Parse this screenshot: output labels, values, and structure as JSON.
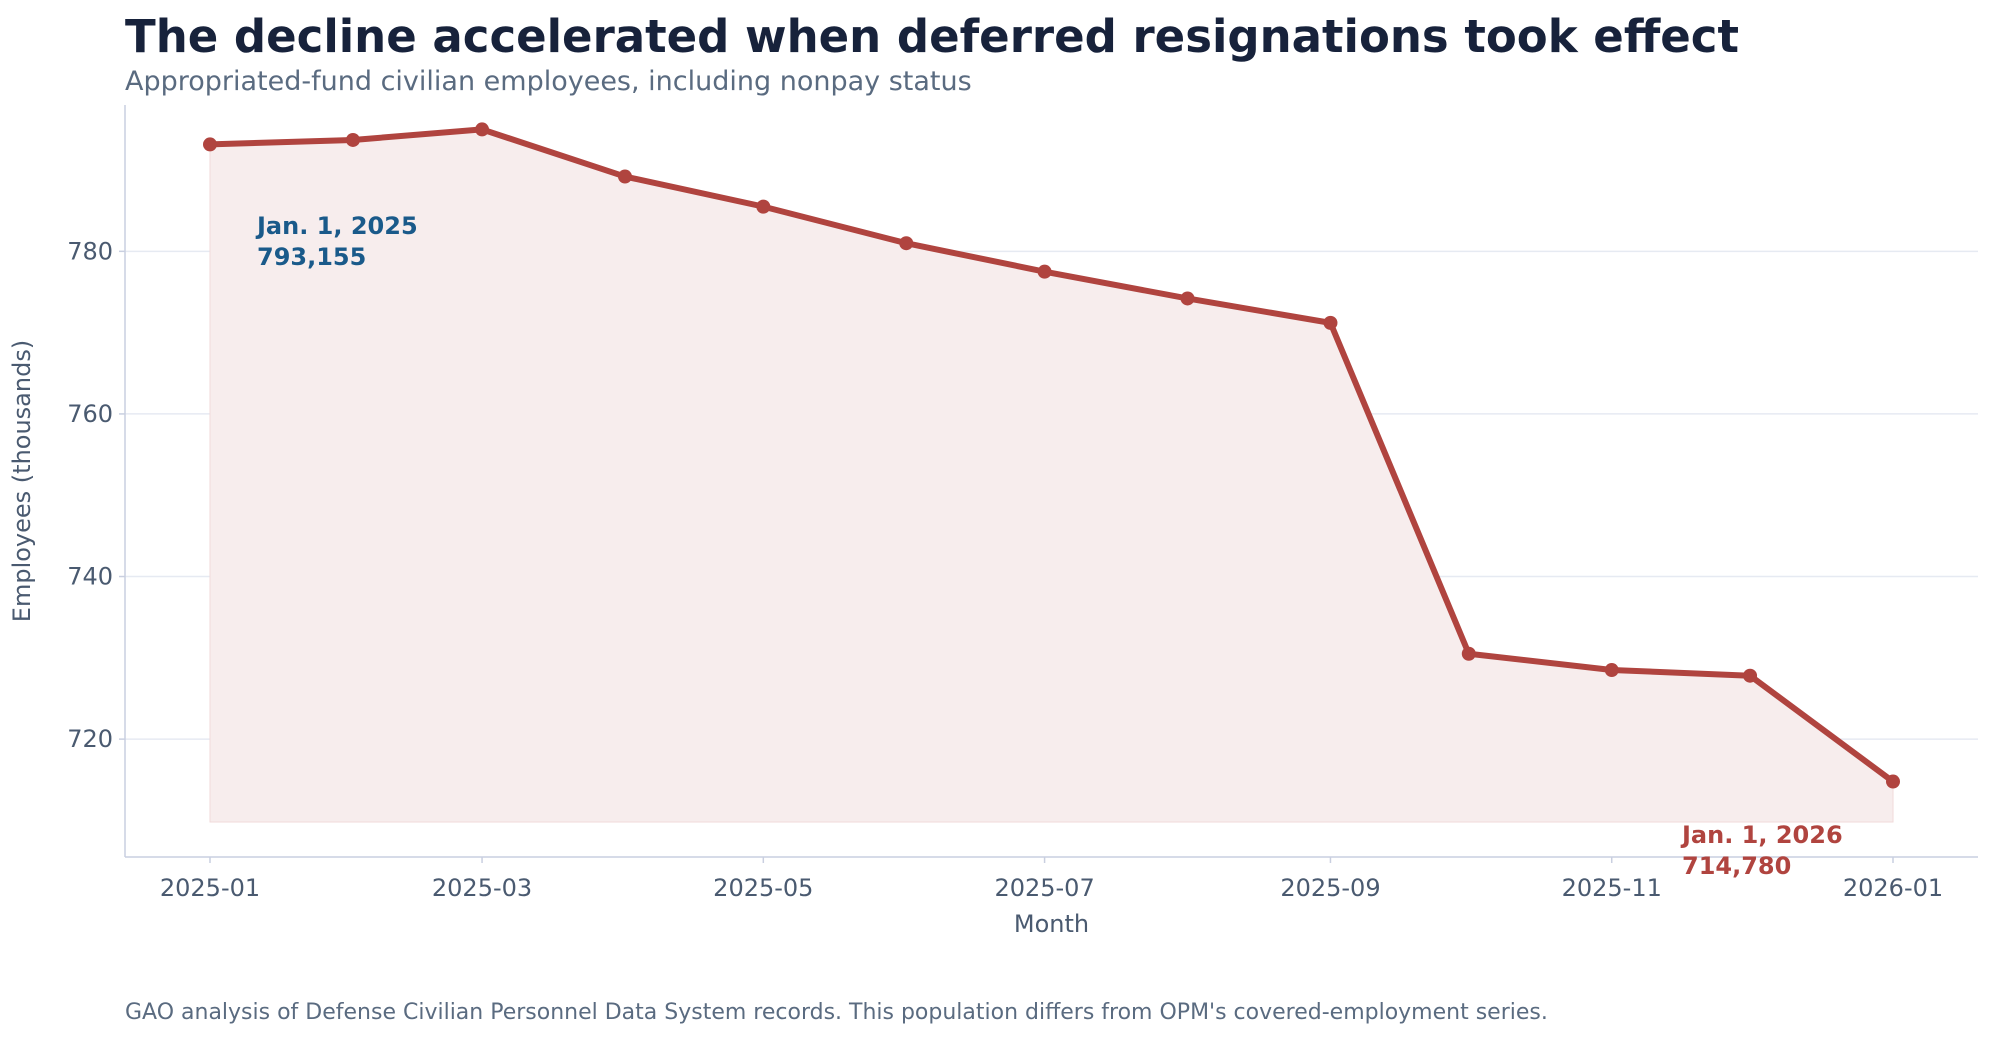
{
  "header": {
    "title": "The decline accelerated when deferred resignations took effect",
    "subtitle": "Appropriated-fund civilian employees, including nonpay status"
  },
  "footer": {
    "source": "GAO analysis of Defense Civilian Personnel Data System records. This population differs from OPM's covered-employment series."
  },
  "colors": {
    "line": "#b0443f",
    "fill": "#f7eded",
    "grid": "#e6eaf2",
    "axis": "#c9cfe0",
    "start_annotation": "#1a5a8a",
    "end_annotation": "#b0443f"
  },
  "chart_data": {
    "type": "area",
    "title": "The decline accelerated when deferred resignations took effect",
    "subtitle": "Appropriated-fund civilian employees, including nonpay status",
    "xlabel": "Month",
    "ylabel": "Employees (thousands)",
    "x": [
      "2025-01-01",
      "2025-02-01",
      "2025-03-01",
      "2025-04-01",
      "2025-05-01",
      "2025-06-01",
      "2025-07-01",
      "2025-08-01",
      "2025-09-01",
      "2025-10-01",
      "2025-11-01",
      "2025-12-01",
      "2026-01-01"
    ],
    "series": [
      {
        "values": [
          793.155,
          793.7,
          795.0,
          789.2,
          785.5,
          781.0,
          777.5,
          774.2,
          771.2,
          730.5,
          728.5,
          727.8,
          714.78
        ]
      }
    ],
    "x_ticks": [
      "2025-01",
      "2025-03",
      "2025-05",
      "2025-07",
      "2025-09",
      "2025-11",
      "2026-01"
    ],
    "y_ticks": [
      720,
      740,
      760,
      780
    ],
    "ylim": [
      705.5,
      798
    ],
    "grid": "horizontal",
    "annotations": [
      {
        "date_label": "Jan. 1, 2025",
        "value_label": "793,155"
      },
      {
        "date_label": "Jan. 1, 2026",
        "value_label": "714,780"
      }
    ]
  }
}
